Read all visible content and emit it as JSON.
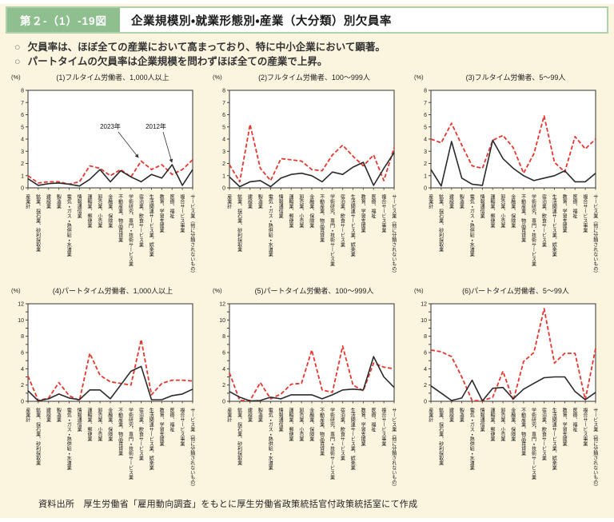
{
  "header": {
    "figure_label": "第２-（1）-19図",
    "title": "企業規模別・就業形態別・産業（大分類）別欠員率"
  },
  "bullet_marker": "○",
  "bullets": [
    "欠員率は、ほぼ全ての産業において高まっており、特に中小企業において顕著。",
    "パートタイムの欠員率は企業規模を問わずほぼ全ての産業で上昇。"
  ],
  "legend": {
    "label_2023": "2023年",
    "label_2012": "2012年"
  },
  "footer": {
    "source": "資料出所　厚生労働省「雇用動向調査」をもとに厚生労働省政策統括官付政策統括室にて作成"
  },
  "colors": {
    "line_2023": "#e5372f",
    "line_2012": "#2a2a2a",
    "header_green": "#8fbe8f",
    "page_bg": "#fbf4de",
    "plot_border": "#444444"
  },
  "chart_data": {
    "type": "line",
    "unit": "(%)",
    "legend_position": "annotated-on-chart-1",
    "grid": false,
    "categories": [
      "産業計",
      "鉱業、採石業、砂利採取業",
      "建設業",
      "製造業",
      "電気・ガス・熱供給・水道業",
      "情報通信業",
      "運輸業、郵便業",
      "卸売業、小売業",
      "金融業、保険業",
      "不動産業、物品賃貸業",
      "学術研究、専門・技術サービス業",
      "宿泊業、飲食サービス業",
      "生活関連サービス業、娯楽業",
      "教育、学習支援業",
      "医療、福祉",
      "複合サービス事業",
      "サービス業（他に分類されないもの）"
    ],
    "series_styles": [
      {
        "name": "2023年",
        "stroke": "red",
        "dash": "dashed"
      },
      {
        "name": "2012年",
        "stroke": "black",
        "dash": "solid"
      }
    ],
    "charts": [
      {
        "title": "(1)フルタイム労働者、1,000人以上",
        "ylim": [
          0,
          8
        ],
        "ytick_step": 1,
        "ylabel_step": 1,
        "series": [
          {
            "name": "2023年",
            "values": [
              1.0,
              0.4,
              0.5,
              0.5,
              0.3,
              0.5,
              1.8,
              1.6,
              1.0,
              1.5,
              0.9,
              2.2,
              1.5,
              1.9,
              1.1,
              1.5,
              2.3
            ]
          },
          {
            "name": "2012年",
            "values": [
              0.75,
              0.2,
              0.35,
              0.4,
              0.3,
              0.15,
              0.7,
              1.5,
              0.5,
              1.4,
              0.9,
              0.5,
              1.1,
              0.8,
              1.9,
              0.2,
              1.5
            ]
          }
        ]
      },
      {
        "title": "(2)フルタイム労働者、100～999人",
        "ylim": [
          0,
          8
        ],
        "ytick_step": 1,
        "ylabel_step": 1,
        "series": [
          {
            "name": "2023年",
            "values": [
              1.9,
              0.5,
              5.2,
              1.6,
              0.6,
              2.4,
              2.3,
              2.2,
              1.5,
              1.4,
              2.7,
              3.5,
              2.6,
              1.8,
              2.7,
              0.6,
              3.3
            ]
          },
          {
            "name": "2012年",
            "values": [
              0.9,
              0.1,
              0.5,
              0.6,
              0.1,
              0.8,
              1.1,
              1.2,
              1.0,
              0.5,
              1.3,
              1.1,
              1.7,
              2.1,
              0.2,
              1.6,
              2.9
            ]
          }
        ]
      },
      {
        "title": "(3)フルタイム労働者、5～99人",
        "ylim": [
          0,
          8
        ],
        "ytick_step": 1,
        "ylabel_step": 1,
        "series": [
          {
            "name": "2023年",
            "values": [
              4.0,
              3.7,
              5.3,
              3.5,
              1.8,
              1.6,
              3.9,
              4.3,
              3.3,
              1.2,
              2.8,
              5.9,
              2.1,
              1.3,
              4.2,
              3.2,
              4.0
            ]
          },
          {
            "name": "2012年",
            "values": [
              1.5,
              0.15,
              3.8,
              0.8,
              0.3,
              0.2,
              3.9,
              2.4,
              1.6,
              1.0,
              0.6,
              0.8,
              1.0,
              1.4,
              0.5,
              0.5,
              1.2
            ]
          }
        ]
      },
      {
        "title": "(4)パートタイム労働者、1,000人以上",
        "ylim": [
          0,
          12
        ],
        "ytick_step": 1,
        "ylabel_step": 2,
        "series": [
          {
            "name": "2023年",
            "values": [
              3.1,
              0.1,
              0.4,
              2.3,
              0.7,
              0.1,
              5.9,
              3.2,
              2.4,
              2.2,
              2.0,
              7.6,
              0.8,
              2.2,
              2.6,
              2.6,
              2.5
            ]
          },
          {
            "name": "2012年",
            "values": [
              1.3,
              0.05,
              0.3,
              0.9,
              0.4,
              0.2,
              1.4,
              1.4,
              0.3,
              2.0,
              3.7,
              4.3,
              0.2,
              0.2,
              0.7,
              0.9,
              1.5
            ]
          }
        ]
      },
      {
        "title": "(5)パートタイム労働者、100～999人",
        "ylim": [
          0,
          12
        ],
        "ytick_step": 1,
        "ylabel_step": 2,
        "series": [
          {
            "name": "2023年",
            "values": [
              3.5,
              0.1,
              0.1,
              2.3,
              0.3,
              0.9,
              2.1,
              2.2,
              6.3,
              1.4,
              1.1,
              6.8,
              2.0,
              1.3,
              4.7,
              4.2,
              4.0
            ]
          },
          {
            "name": "2012年",
            "values": [
              1.2,
              0.5,
              0.05,
              0.1,
              0.5,
              0.3,
              0.8,
              0.8,
              0.8,
              0.3,
              0.8,
              1.4,
              1.5,
              1.4,
              5.5,
              3.0,
              1.7
            ]
          }
        ]
      },
      {
        "title": "(6)パートタイム労働者、5～99人",
        "ylim": [
          0,
          12
        ],
        "ytick_step": 1,
        "ylabel_step": 2,
        "series": [
          {
            "name": "2023年",
            "values": [
              6.3,
              6.1,
              5.5,
              3.0,
              0.1,
              0.05,
              0.5,
              3.7,
              0.1,
              4.9,
              6.0,
              11.4,
              4.7,
              5.9,
              5.9,
              0.2,
              6.5
            ]
          },
          {
            "name": "2012年",
            "values": [
              1.9,
              1.0,
              0.1,
              0.4,
              2.6,
              0.05,
              1.6,
              1.7,
              0.3,
              1.5,
              2.2,
              2.9,
              3.0,
              3.0,
              1.2,
              0.2,
              1.1
            ]
          }
        ]
      }
    ]
  }
}
